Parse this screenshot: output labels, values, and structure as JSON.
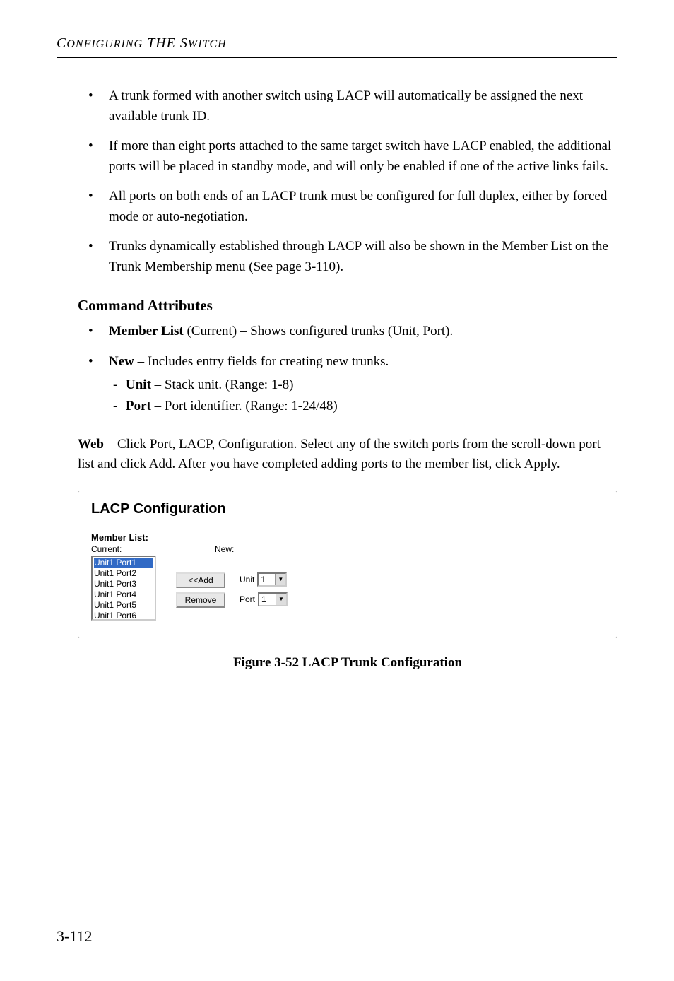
{
  "header": "Configuring the Switch",
  "bullets_main": [
    "A trunk formed with another switch using LACP will automatically be assigned the next available trunk ID.",
    "If more than eight ports attached to the same target switch have LACP enabled, the additional ports will be placed in standby mode, and will only be enabled if one of the active links fails.",
    "All ports on both ends of an LACP trunk must be configured for full duplex, either by forced mode or auto-negotiation.",
    "Trunks dynamically established through LACP will also be shown in the Member List on the Trunk Membership menu (See page 3-110)."
  ],
  "section_heading": "Command Attributes",
  "attr_items": [
    {
      "bold": "Member List",
      "norm": " (Current) – Shows configured trunks (Unit, Port)."
    },
    {
      "bold": "New",
      "norm": " – Includes entry fields for creating new trunks."
    }
  ],
  "sub_items": [
    {
      "bold": "Unit",
      "norm": " – Stack unit. (Range: 1-8)"
    },
    {
      "bold": "Port",
      "norm": " – Port identifier. (Range: 1-24/48)"
    }
  ],
  "web_para_prefix": "Web",
  "web_para_rest": " – Click Port, LACP, Configuration. Select any of the switch ports from the scroll-down port list and click Add. After you have completed adding ports to the member list, click Apply.",
  "panel": {
    "title": "LACP Configuration",
    "member_list_label": "Member List:",
    "current_label": "Current:",
    "new_label": "New:",
    "list_items": [
      "Unit1 Port1",
      "Unit1 Port2",
      "Unit1 Port3",
      "Unit1 Port4",
      "Unit1 Port5",
      "Unit1 Port6"
    ],
    "selected_index": 0,
    "add_btn": "<<Add",
    "remove_btn": "Remove",
    "unit_label": "Unit",
    "unit_value": "1",
    "port_label": "Port",
    "port_value": "1"
  },
  "figure_caption": "Figure 3-52  LACP Trunk Configuration",
  "page_number": "3-112"
}
